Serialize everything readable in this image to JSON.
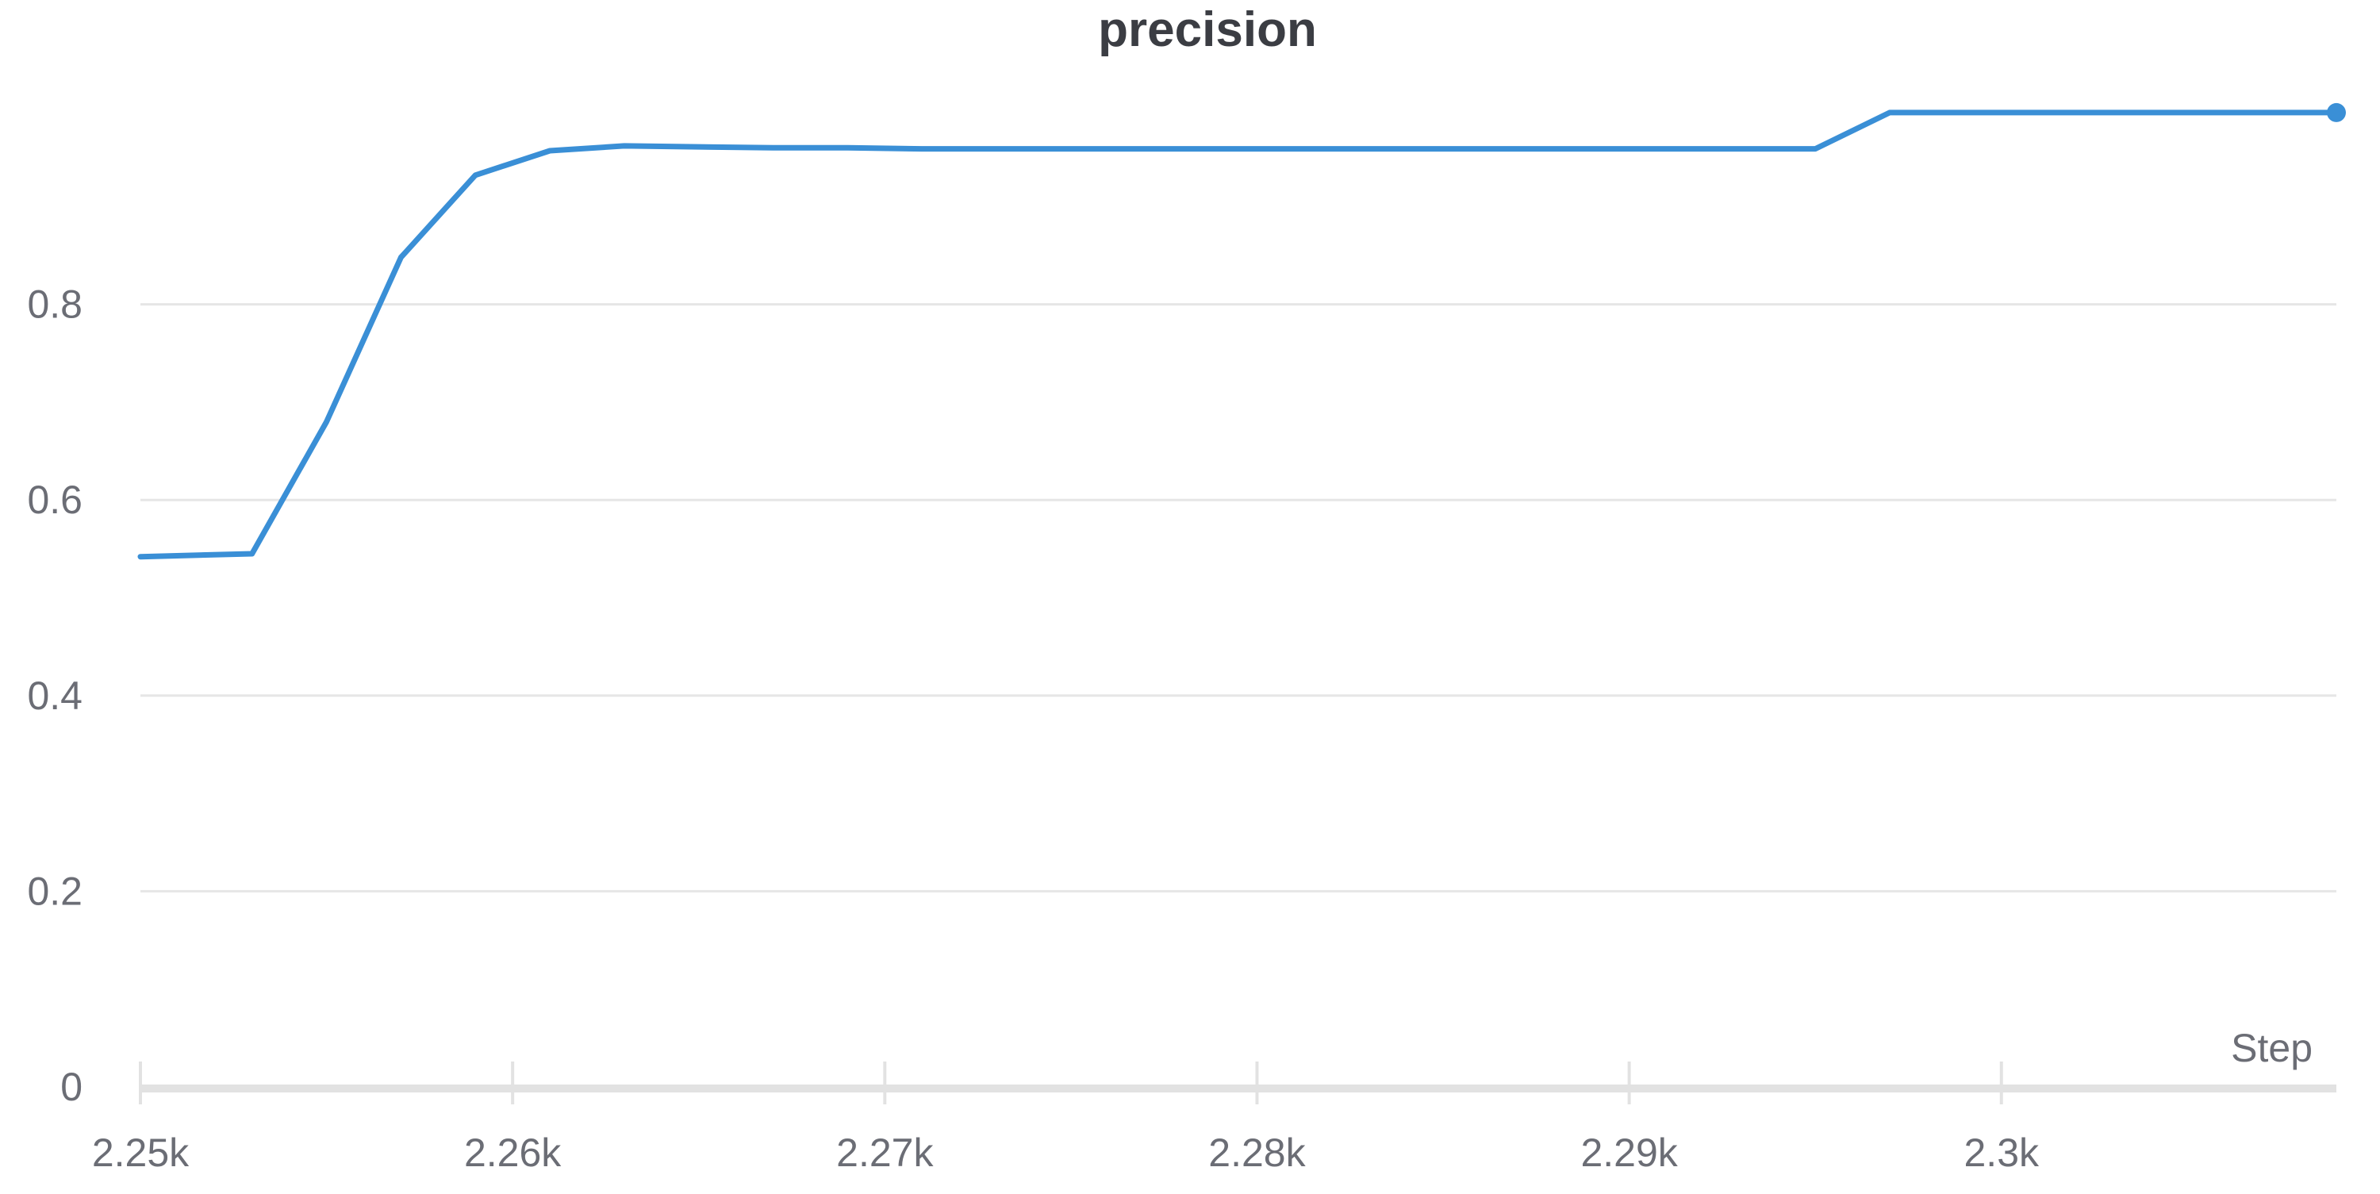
{
  "chart_data": {
    "type": "line",
    "title": "precision",
    "xlabel": "Step",
    "ylabel": "",
    "xlim": [
      2250,
      2309
    ],
    "ylim": [
      0,
      1.0
    ],
    "grid": true,
    "x_ticks": [
      2250,
      2260,
      2270,
      2280,
      2290,
      2300
    ],
    "x_tick_labels": [
      "2.25k",
      "2.26k",
      "2.27k",
      "2.28k",
      "2.29k",
      "2.3k"
    ],
    "y_ticks": [
      0,
      0.2,
      0.4,
      0.6,
      0.8
    ],
    "y_tick_labels": [
      "0",
      "0.2",
      "0.4",
      "0.6",
      "0.8"
    ],
    "colors": {
      "line": "#3a8fd6"
    },
    "series": [
      {
        "x": [
          2250,
          2253,
          2255,
          2257,
          2259,
          2261,
          2263,
          2265,
          2267,
          2269,
          2271,
          2273,
          2275,
          2277,
          2279,
          2281,
          2283,
          2285,
          2287,
          2289,
          2291,
          2293,
          2295,
          2297,
          2299,
          2301,
          2303,
          2305,
          2307,
          2309
        ],
        "values": [
          0.542,
          0.545,
          0.68,
          0.848,
          0.932,
          0.957,
          0.962,
          0.961,
          0.96,
          0.96,
          0.959,
          0.959,
          0.959,
          0.959,
          0.959,
          0.959,
          0.959,
          0.959,
          0.959,
          0.959,
          0.959,
          0.959,
          0.959,
          0.996,
          0.996,
          0.996,
          0.996,
          0.996,
          0.996,
          0.996
        ]
      }
    ]
  }
}
